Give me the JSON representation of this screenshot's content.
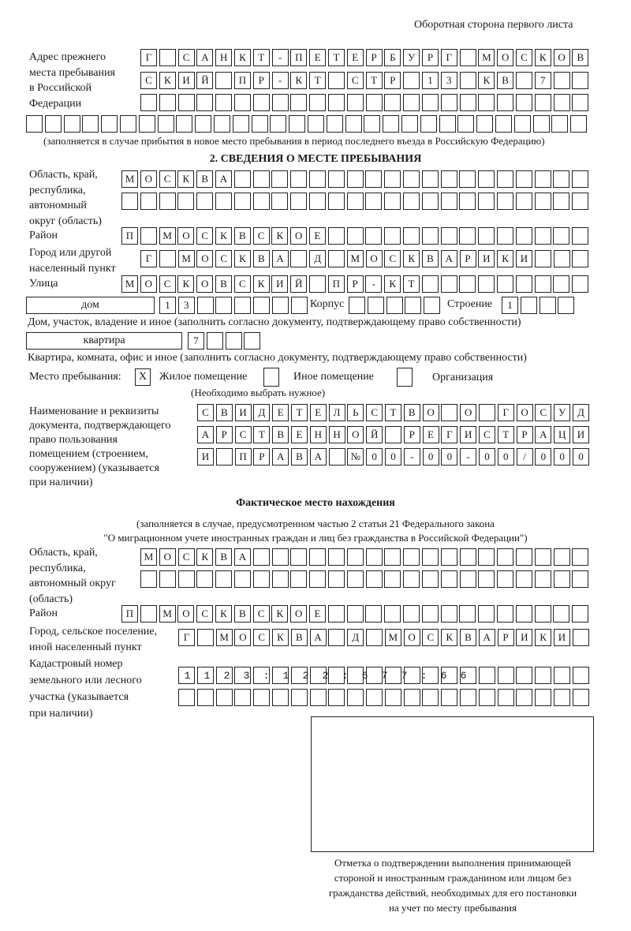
{
  "header": {
    "side_label": "Оборотная сторона первого листа"
  },
  "prev_address": {
    "label": [
      "Адрес прежнего",
      "места пребывания",
      "в Российской",
      "Федерации"
    ],
    "rows": [
      "Г САНКТ-ПЕТЕРБУРГ МОСКОВ",
      "СКИЙ ПР-КТ СТР 13 КВ 7",
      "",
      ""
    ],
    "note": "(заполняется в случае прибытия в новое место пребывания в период последнего въезда в Российскую Федерацию)"
  },
  "section2": {
    "heading": "2. СВЕДЕНИЯ О МЕСТЕ ПРЕБЫВАНИЯ",
    "region": {
      "label": [
        "Область, край,",
        "республика,",
        "автономный",
        "округ (область)"
      ],
      "rows": [
        "МОСКВА",
        ""
      ]
    },
    "district": {
      "label": "Район",
      "row": "П МОСКВСКОЕ"
    },
    "city": {
      "label": [
        "Город или другой",
        "населенный пункт"
      ],
      "row": "Г МОСКВА Д МОСКВАРИКИ"
    },
    "street": {
      "label": "Улица",
      "row": "МОСКОВСКИЙ ПР-КТ"
    },
    "house": {
      "type": "дом",
      "number": "13",
      "korpus_label": "Корпус",
      "korpus": "",
      "building_label": "Строение",
      "building": "1",
      "caption": "Дом, участок, владение и иное (заполнить согласно документу, подтверждающему право собственности)"
    },
    "apartment": {
      "type": "квартира",
      "number": "7",
      "caption": "Квартира, комната, офис и иное (заполнить согласно документу, подтверждающему право собственности)"
    },
    "stay_place": {
      "label": "Место пребывания:",
      "options": [
        {
          "label": "Жилое помещение",
          "mark": "X"
        },
        {
          "label": "Иное помещение",
          "mark": ""
        },
        {
          "label": "Организация",
          "mark": ""
        }
      ],
      "hint": "(Необходимо выбрать нужное)"
    },
    "document": {
      "label": [
        "Наименование и реквизиты",
        "документа, подтверждающего",
        "право пользования",
        "помещением (строением,",
        "сооружением) (указывается",
        "при наличии)"
      ],
      "rows": [
        "СВИДЕТЕЛЬСТВО О ГОСУД",
        "АРСТВЕННОЙ РЕГИСТРАЦИ",
        "И ПРАВА №00-00-00/000"
      ]
    }
  },
  "actual": {
    "heading": "Фактическое место нахождения",
    "note": [
      "(заполняется в случае, предусмотренном частью 2 статьи 21 Федерального закона",
      "\"О миграционном учете иностранных граждан и лиц без гражданства в Российской Федерации\")"
    ],
    "region": {
      "label": [
        "Область, край,",
        "республика,",
        "автономный округ",
        "(область)"
      ],
      "rows": [
        "МОСКВА",
        ""
      ]
    },
    "district": {
      "label": "Район",
      "row": "П МОСКВСКОЕ"
    },
    "city": {
      "label": [
        "Город, сельское поселение,",
        "иной населенный пункт"
      ],
      "row": "Г МОСКВА Д МОСКВАРИКИ"
    },
    "cadastre": {
      "label": [
        "Кадастровый номер",
        "земельного или лесного",
        "участка (указывается",
        "при наличии)"
      ],
      "rows": [
        "1123:122:677:66",
        ""
      ]
    }
  },
  "confirmation": {
    "caption": [
      "Отметка о подтверждении выполнения принимающей",
      "стороной и иностранным гражданином или лицом без",
      "гражданства действий, необходимых для его постановки",
      "на учет по месту пребывания"
    ]
  }
}
